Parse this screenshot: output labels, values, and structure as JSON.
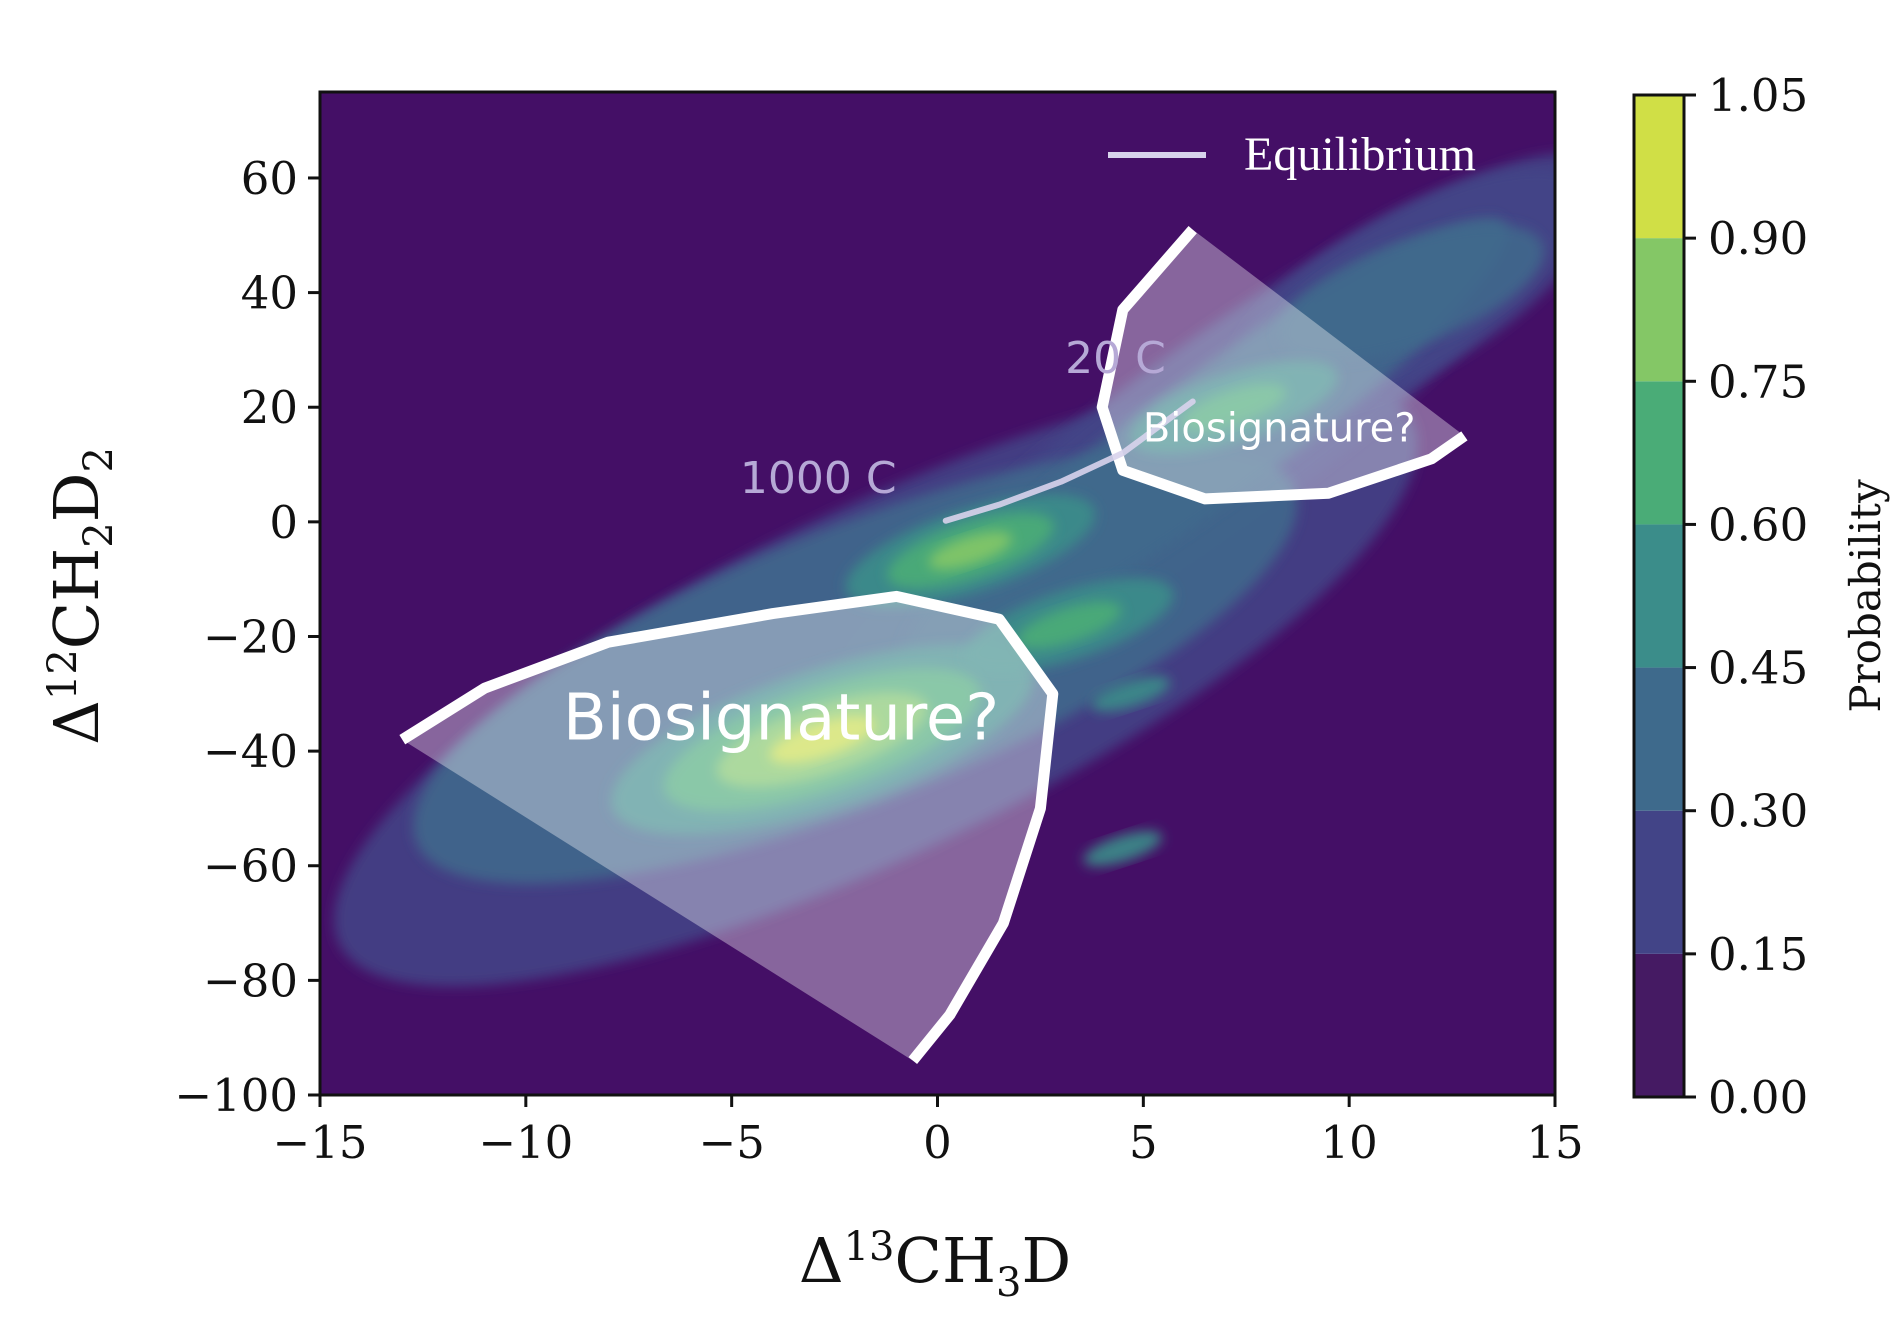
{
  "chart_data": {
    "type": "heatmap",
    "subtype": "filled-contour density",
    "xlabel": "Δ13CH3D",
    "ylabel": "Δ12CH2D2",
    "xlim": [
      -15,
      15
    ],
    "ylim": [
      -100,
      75
    ],
    "x_ticks": [
      "−15",
      "−10",
      "−5",
      "0",
      "5",
      "10",
      "15"
    ],
    "x_tick_values": [
      -15,
      -10,
      -5,
      0,
      5,
      10,
      15
    ],
    "y_ticks": [
      "60",
      "40",
      "20",
      "0",
      "−20",
      "−40",
      "−60",
      "−80",
      "−100"
    ],
    "y_tick_values": [
      60,
      40,
      20,
      0,
      -20,
      -40,
      -60,
      -80,
      -100
    ],
    "grid": false,
    "background_color": "#440f66",
    "colorbar": {
      "label": "Probability",
      "levels": [
        0.0,
        0.15,
        0.3,
        0.45,
        0.6,
        0.75,
        0.9,
        1.05
      ],
      "tick_labels": [
        "1.05",
        "0.90",
        "0.75",
        "0.60",
        "0.45",
        "0.30",
        "0.15",
        "0.00"
      ],
      "colors": [
        "#451a63",
        "#424487",
        "#3e6a8c",
        "#3b8d8a",
        "#4aac77",
        "#84c766",
        "#d0df46"
      ]
    },
    "density_peaks": [
      {
        "x": -2.8,
        "y": -38,
        "relative_height": 1.0
      },
      {
        "x": 0.8,
        "y": -5,
        "relative_height": 0.8
      },
      {
        "x": 3.2,
        "y": -18,
        "relative_height": 0.65
      },
      {
        "x": 7.2,
        "y": 20,
        "relative_height": 0.6
      },
      {
        "x": 4.7,
        "y": -30,
        "relative_height": 0.5
      },
      {
        "x": 4.5,
        "y": -57,
        "relative_height": 0.45
      },
      {
        "x": 12.0,
        "y": 42,
        "relative_height": 0.4
      }
    ],
    "legend": {
      "entries": [
        "Equilibrium"
      ],
      "placement": "top-right"
    },
    "equilibrium_line": {
      "color": "#d8d3ec",
      "points": [
        [
          0.2,
          0.2
        ],
        [
          1.5,
          3.0
        ],
        [
          3.0,
          7.0
        ],
        [
          4.5,
          12.0
        ],
        [
          6.2,
          21.0
        ]
      ],
      "labels": [
        {
          "text": "1000 C",
          "x": -4.8,
          "y": 5
        },
        {
          "text": "20 C",
          "x": 3.1,
          "y": 26
        }
      ]
    },
    "regions": [
      {
        "label": "Biosignature?",
        "label_position": [
          -3.8,
          -38
        ],
        "boundary": [
          [
            -13.0,
            -38
          ],
          [
            -11.0,
            -29
          ],
          [
            -8.0,
            -21
          ],
          [
            -4.0,
            -16
          ],
          [
            -1.0,
            -13
          ],
          [
            1.5,
            -17
          ],
          [
            2.8,
            -30
          ],
          [
            2.5,
            -50
          ],
          [
            1.6,
            -70
          ],
          [
            0.3,
            -86
          ],
          [
            -0.6,
            -94
          ]
        ],
        "closed_with": "straight edge"
      },
      {
        "label": "Biosignature?",
        "label_position": [
          8.3,
          14
        ],
        "boundary": [
          [
            6.2,
            51
          ],
          [
            4.5,
            37
          ],
          [
            4.0,
            20
          ],
          [
            4.5,
            9
          ],
          [
            6.5,
            4
          ],
          [
            9.5,
            5
          ],
          [
            12.0,
            11
          ],
          [
            12.8,
            15
          ]
        ],
        "closed_with": "straight edge"
      }
    ]
  }
}
